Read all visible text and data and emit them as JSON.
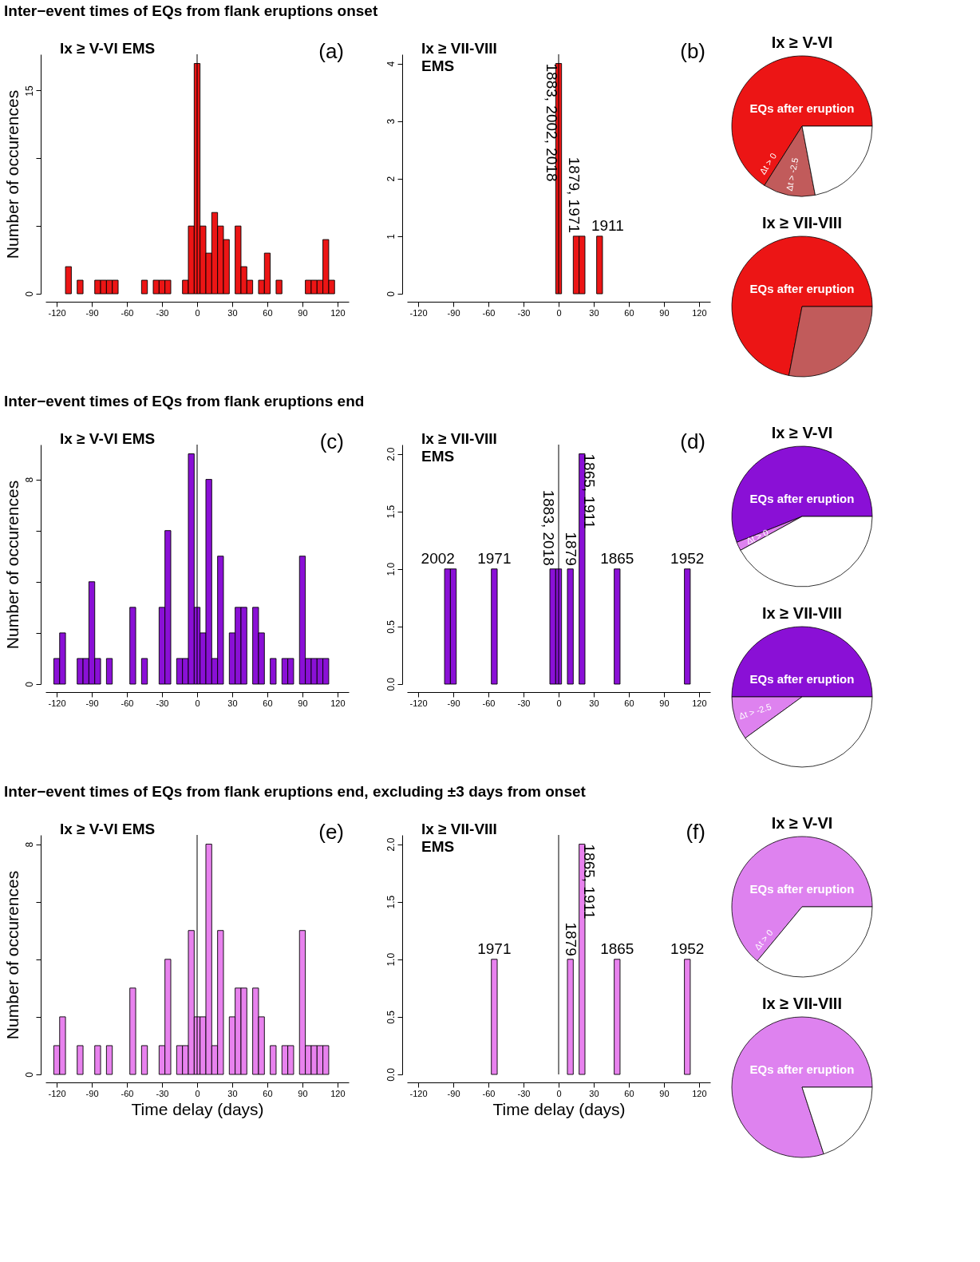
{
  "chart_data": [
    {
      "type": "histogram",
      "title": "Inter−event times of EQs from flank eruptions onset",
      "ylabel": "Number of occurences",
      "color": "#ec1515",
      "bins": [
        -122.5,
        -117.5,
        -112.5,
        -107.5,
        -102.5,
        -97.5,
        -92.5,
        -87.5,
        -82.5,
        -77.5,
        -72.5,
        -67.5,
        -62.5,
        -57.5,
        -52.5,
        -47.5,
        -42.5,
        -37.5,
        -32.5,
        -27.5,
        -22.5,
        -17.5,
        -12.5,
        -7.5,
        -2.5,
        2.5,
        7.5,
        12.5,
        17.5,
        22.5,
        27.5,
        32.5,
        37.5,
        42.5,
        47.5,
        52.5,
        57.5,
        62.5,
        67.5,
        72.5,
        77.5,
        82.5,
        87.5,
        92.5,
        97.5,
        102.5,
        107.5,
        112.5,
        117.5
      ],
      "values": [
        0,
        0,
        2,
        0,
        1,
        0,
        0,
        1,
        1,
        1,
        1,
        0,
        0,
        0,
        0,
        1,
        0,
        1,
        1,
        1,
        0,
        0,
        1,
        5,
        17,
        5,
        3,
        6,
        5,
        4,
        0,
        5,
        2,
        1,
        0,
        1,
        3,
        0,
        1,
        0,
        0,
        0,
        0,
        1,
        1,
        1,
        4,
        1
      ],
      "xlim": [
        -129.6,
        129.6
      ],
      "xticks": [
        -120,
        -90,
        -60,
        -30,
        0,
        30,
        60,
        90,
        120
      ],
      "ylim": [
        0,
        17.68
      ],
      "yticks": [
        0,
        {
          "value": 5,
          "label": null
        },
        {
          "value": 10,
          "label": null
        },
        15
      ],
      "ref_lines": [
        {
          "axis": "x",
          "value": 0,
          "color": "#000000"
        }
      ],
      "annotations": [
        "Ix ≥ V-VI EMS",
        "(a)"
      ]
    },
    {
      "type": "histogram",
      "color": "#ec1515",
      "bins": [
        -122.5,
        -117.5,
        -112.5,
        -107.5,
        -102.5,
        -97.5,
        -92.5,
        -87.5,
        -82.5,
        -77.5,
        -72.5,
        -67.5,
        -62.5,
        -57.5,
        -52.5,
        -47.5,
        -42.5,
        -37.5,
        -32.5,
        -27.5,
        -22.5,
        -17.5,
        -12.5,
        -7.5,
        -2.5,
        2.5,
        7.5,
        12.5,
        17.5,
        22.5,
        27.5,
        32.5,
        37.5,
        42.5,
        47.5,
        52.5,
        57.5,
        62.5,
        67.5,
        72.5,
        77.5,
        82.5,
        87.5,
        92.5,
        97.5,
        102.5,
        107.5,
        112.5,
        117.5
      ],
      "values": [
        0,
        0,
        0,
        0,
        0,
        0,
        0,
        0,
        0,
        0,
        0,
        0,
        0,
        0,
        0,
        0,
        0,
        0,
        0,
        0,
        0,
        0,
        0,
        0,
        4,
        0,
        0,
        1,
        1,
        0,
        0,
        1,
        0,
        0,
        0,
        0,
        0,
        0,
        0,
        0,
        0,
        0,
        0,
        0,
        0,
        0,
        0,
        0
      ],
      "xlim": [
        -129.6,
        129.6
      ],
      "xticks": [
        -120,
        -90,
        -60,
        -30,
        0,
        30,
        60,
        90,
        120
      ],
      "ylim": [
        0,
        4.16
      ],
      "yticks": [
        0,
        1,
        2,
        3,
        4
      ],
      "ref_lines": [
        {
          "axis": "x",
          "value": 0,
          "color": "#000000"
        }
      ],
      "annotations": [
        "Ix ≥ VII-VIII\nEMS",
        "(b)",
        {
          "text": "1883, 2002, 2018",
          "x": 0,
          "y": 4
        },
        {
          "text": "1879, 1971",
          "x": 20,
          "y": 1
        },
        {
          "text": "1911",
          "x": 35,
          "y": 1
        }
      ]
    },
    {
      "type": "pie",
      "title": "Ix ≥ V-VI",
      "categories": [
        "EQs after eruption",
        "Δt > -2.5",
        null
      ],
      "values": [
        66,
        12,
        22
      ],
      "colors": [
        "#ec1515",
        "#c15b5b",
        "#ffffff"
      ],
      "annotations": [
        "Δt > 0"
      ]
    },
    {
      "type": "pie",
      "title": "Ix ≥ VII-VIII",
      "categories": [
        "EQs after eruption",
        null
      ],
      "values": [
        72,
        28
      ],
      "colors": [
        "#ec1515",
        "#c15b5b"
      ]
    },
    {
      "type": "histogram",
      "title": "Inter−event times of EQs from flank eruptions end",
      "ylabel": "Number of occurences",
      "color": "#8a10d6",
      "bins": [
        -122.5,
        -117.5,
        -112.5,
        -107.5,
        -102.5,
        -97.5,
        -92.5,
        -87.5,
        -82.5,
        -77.5,
        -72.5,
        -67.5,
        -62.5,
        -57.5,
        -52.5,
        -47.5,
        -42.5,
        -37.5,
        -32.5,
        -27.5,
        -22.5,
        -17.5,
        -12.5,
        -7.5,
        -2.5,
        2.5,
        7.5,
        12.5,
        17.5,
        22.5,
        27.5,
        32.5,
        37.5,
        42.5,
        47.5,
        52.5,
        57.5,
        62.5,
        67.5,
        72.5,
        77.5,
        82.5,
        87.5,
        92.5,
        97.5,
        102.5,
        107.5,
        112.5,
        117.5
      ],
      "values": [
        1,
        2,
        0,
        0,
        1,
        1,
        4,
        1,
        0,
        1,
        0,
        0,
        0,
        3,
        0,
        1,
        0,
        0,
        3,
        6,
        0,
        1,
        1,
        9,
        3,
        2,
        8,
        1,
        5,
        0,
        2,
        3,
        3,
        0,
        3,
        2,
        0,
        1,
        0,
        1,
        1,
        0,
        5,
        1,
        1,
        1,
        1,
        0
      ],
      "xlim": [
        -129.6,
        129.6
      ],
      "xticks": [
        -120,
        -90,
        -60,
        -30,
        0,
        30,
        60,
        90,
        120
      ],
      "ylim": [
        0,
        9.36
      ],
      "yticks": [
        0,
        {
          "value": 2,
          "label": null
        },
        {
          "value": 4,
          "label": null
        },
        {
          "value": 6,
          "label": null
        },
        8
      ],
      "ref_lines": [
        {
          "axis": "x",
          "value": 0,
          "color": "#000000"
        }
      ],
      "annotations": [
        "Ix ≥ V-VI EMS",
        "(c)"
      ]
    },
    {
      "type": "histogram",
      "color": "#8a10d6",
      "bins": [
        -122.5,
        -117.5,
        -112.5,
        -107.5,
        -102.5,
        -97.5,
        -92.5,
        -87.5,
        -82.5,
        -77.5,
        -72.5,
        -67.5,
        -62.5,
        -57.5,
        -52.5,
        -47.5,
        -42.5,
        -37.5,
        -32.5,
        -27.5,
        -22.5,
        -17.5,
        -12.5,
        -7.5,
        -2.5,
        2.5,
        7.5,
        12.5,
        17.5,
        22.5,
        27.5,
        32.5,
        37.5,
        42.5,
        47.5,
        52.5,
        57.5,
        62.5,
        67.5,
        72.5,
        77.5,
        82.5,
        87.5,
        92.5,
        97.5,
        102.5,
        107.5,
        112.5,
        117.5
      ],
      "values": [
        0,
        0,
        0,
        0,
        0,
        1,
        1,
        0,
        0,
        0,
        0,
        0,
        0,
        1,
        0,
        0,
        0,
        0,
        0,
        0,
        0,
        0,
        0,
        1,
        1,
        0,
        1,
        0,
        2,
        0,
        0,
        0,
        0,
        0,
        1,
        0,
        0,
        0,
        0,
        0,
        0,
        0,
        0,
        0,
        0,
        0,
        1,
        0
      ],
      "xlim": [
        -129.6,
        129.6
      ],
      "xticks": [
        -120,
        -90,
        -60,
        -30,
        0,
        30,
        60,
        90,
        120
      ],
      "ylim": [
        0,
        2.08
      ],
      "yticks": [
        {
          "value": 0,
          "label": "0.0"
        },
        {
          "value": 0.5,
          "label": "0.5"
        },
        {
          "value": 1,
          "label": "1.0"
        },
        {
          "value": 1.5,
          "label": "1.5"
        },
        {
          "value": 2,
          "label": "2.0"
        }
      ],
      "ref_lines": [
        {
          "axis": "x",
          "value": 0,
          "color": "#000000"
        }
      ],
      "annotations": [
        "Ix ≥ VII-VIII\nEMS",
        "(d)",
        {
          "text": "2002",
          "x": -95,
          "y": 1
        },
        {
          "text": "1971",
          "x": -55,
          "y": 1
        },
        {
          "text": "1883, 2018",
          "x": -5,
          "y": 1
        },
        {
          "text": "1879",
          "x": 10,
          "y": 1
        },
        {
          "text": "1865, 1911",
          "x": 20,
          "y": 2
        },
        {
          "text": "1865",
          "x": 50,
          "y": 1
        },
        {
          "text": "1952",
          "x": 110,
          "y": 1
        }
      ]
    },
    {
      "type": "pie",
      "title": "Ix ≥ V-VI",
      "categories": [
        "EQs after eruption",
        "Δt > 0",
        null
      ],
      "values": [
        56,
        2,
        42
      ],
      "colors": [
        "#8a10d6",
        "#de82ef",
        "#ffffff"
      ]
    },
    {
      "type": "pie",
      "title": "Ix ≥ VII-VIII",
      "categories": [
        "EQs after eruption",
        "Δt > -2.5",
        null
      ],
      "values": [
        50,
        10,
        40
      ],
      "colors": [
        "#8a10d6",
        "#de82ef",
        "#ffffff"
      ]
    },
    {
      "type": "histogram",
      "title": "Inter−event times of EQs from flank eruptions end, excluding ±3 days from onset",
      "ylabel": "Number of occurences",
      "xlabel": "Time delay (days)",
      "color": "#e882ee",
      "bins": [
        -122.5,
        -117.5,
        -112.5,
        -107.5,
        -102.5,
        -97.5,
        -92.5,
        -87.5,
        -82.5,
        -77.5,
        -72.5,
        -67.5,
        -62.5,
        -57.5,
        -52.5,
        -47.5,
        -42.5,
        -37.5,
        -32.5,
        -27.5,
        -22.5,
        -17.5,
        -12.5,
        -7.5,
        -2.5,
        2.5,
        7.5,
        12.5,
        17.5,
        22.5,
        27.5,
        32.5,
        37.5,
        42.5,
        47.5,
        52.5,
        57.5,
        62.5,
        67.5,
        72.5,
        77.5,
        82.5,
        87.5,
        92.5,
        97.5,
        102.5,
        107.5,
        112.5,
        117.5
      ],
      "values": [
        1,
        2,
        0,
        0,
        1,
        0,
        0,
        1,
        0,
        1,
        0,
        0,
        0,
        3,
        0,
        1,
        0,
        0,
        1,
        4,
        0,
        1,
        1,
        5,
        2,
        2,
        8,
        1,
        5,
        0,
        2,
        3,
        3,
        0,
        3,
        2,
        0,
        1,
        0,
        1,
        1,
        0,
        5,
        1,
        1,
        1,
        1,
        0
      ],
      "xlim": [
        -129.6,
        129.6
      ],
      "xticks": [
        -120,
        -90,
        -60,
        -30,
        0,
        30,
        60,
        90,
        120
      ],
      "ylim": [
        0,
        8.32
      ],
      "yticks": [
        0,
        {
          "value": 2,
          "label": null
        },
        {
          "value": 4,
          "label": null
        },
        {
          "value": 6,
          "label": null
        },
        8
      ],
      "ref_lines": [
        {
          "axis": "x",
          "value": 0,
          "color": "#000000"
        }
      ],
      "annotations": [
        "Ix ≥ V-VI EMS",
        "(e)"
      ]
    },
    {
      "type": "histogram",
      "xlabel": "Time delay (days)",
      "color": "#e882ee",
      "bins": [
        -122.5,
        -117.5,
        -112.5,
        -107.5,
        -102.5,
        -97.5,
        -92.5,
        -87.5,
        -82.5,
        -77.5,
        -72.5,
        -67.5,
        -62.5,
        -57.5,
        -52.5,
        -47.5,
        -42.5,
        -37.5,
        -32.5,
        -27.5,
        -22.5,
        -17.5,
        -12.5,
        -7.5,
        -2.5,
        2.5,
        7.5,
        12.5,
        17.5,
        22.5,
        27.5,
        32.5,
        37.5,
        42.5,
        47.5,
        52.5,
        57.5,
        62.5,
        67.5,
        72.5,
        77.5,
        82.5,
        87.5,
        92.5,
        97.5,
        102.5,
        107.5,
        112.5,
        117.5
      ],
      "values": [
        0,
        0,
        0,
        0,
        0,
        0,
        0,
        0,
        0,
        0,
        0,
        0,
        0,
        1,
        0,
        0,
        0,
        0,
        0,
        0,
        0,
        0,
        0,
        0,
        0,
        0,
        1,
        0,
        2,
        0,
        0,
        0,
        0,
        0,
        1,
        0,
        0,
        0,
        0,
        0,
        0,
        0,
        0,
        0,
        0,
        0,
        1,
        0
      ],
      "xlim": [
        -129.6,
        129.6
      ],
      "xticks": [
        -120,
        -90,
        -60,
        -30,
        0,
        30,
        60,
        90,
        120
      ],
      "ylim": [
        0,
        2.08
      ],
      "yticks": [
        {
          "value": 0,
          "label": "0.0"
        },
        {
          "value": 0.5,
          "label": "0.5"
        },
        {
          "value": 1,
          "label": "1.0"
        },
        {
          "value": 1.5,
          "label": "1.5"
        },
        {
          "value": 2,
          "label": "2.0"
        }
      ],
      "ref_lines": [
        {
          "axis": "x",
          "value": 0,
          "color": "#000000"
        }
      ],
      "annotations": [
        "Ix ≥ VII-VIII\nEMS",
        "(f)",
        {
          "text": "1971",
          "x": -55,
          "y": 1
        },
        {
          "text": "1879",
          "x": 10,
          "y": 1
        },
        {
          "text": "1865, 1911",
          "x": 20,
          "y": 2
        },
        {
          "text": "1865",
          "x": 50,
          "y": 1
        },
        {
          "text": "1952",
          "x": 110,
          "y": 1
        }
      ]
    },
    {
      "type": "pie",
      "title": "Ix ≥ V-VI",
      "categories": [
        "EQs after eruption",
        null
      ],
      "values": [
        64,
        36
      ],
      "colors": [
        "#de82ef",
        "#ffffff"
      ],
      "annotations": [
        "Δt > 0"
      ]
    },
    {
      "type": "pie",
      "title": "Ix ≥ VII-VIII",
      "categories": [
        "EQs after eruption",
        null
      ],
      "values": [
        80,
        20
      ],
      "colors": [
        "#de82ef",
        "#ffffff"
      ]
    }
  ]
}
